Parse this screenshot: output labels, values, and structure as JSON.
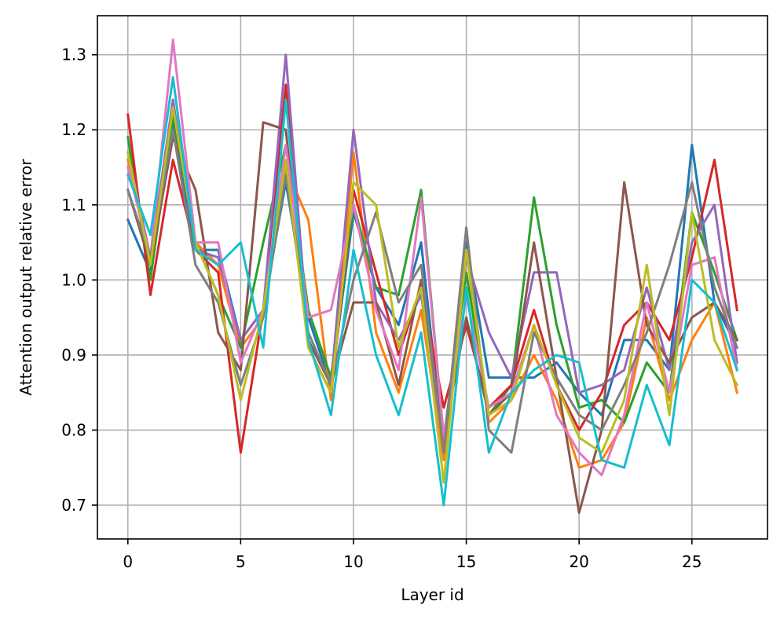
{
  "chart_data": {
    "type": "line",
    "title": "",
    "xlabel": "Layer id",
    "ylabel": "Attention output relative error",
    "xlim": [
      -1.35,
      28.35
    ],
    "ylim": [
      0.655,
      1.352
    ],
    "grid": true,
    "x_ticks": [
      0,
      5,
      10,
      15,
      20,
      25
    ],
    "x_tick_labels": [
      "0",
      "5",
      "10",
      "15",
      "20",
      "25"
    ],
    "y_ticks": [
      0.7,
      0.8,
      0.9,
      1.0,
      1.1,
      1.2,
      1.3
    ],
    "y_tick_labels": [
      "0.7",
      "0.8",
      "0.9",
      "1.0",
      "1.1",
      "1.2",
      "1.3"
    ],
    "x": [
      0,
      1,
      2,
      3,
      4,
      5,
      6,
      7,
      8,
      9,
      10,
      11,
      12,
      13,
      14,
      15,
      16,
      17,
      18,
      19,
      20,
      21,
      22,
      23,
      24,
      25,
      26,
      27
    ],
    "series": [
      {
        "color": "#1f77b4",
        "values": [
          1.08,
          1.01,
          1.21,
          1.04,
          1.04,
          0.92,
          0.96,
          1.13,
          0.95,
          0.86,
          1.09,
          0.99,
          0.94,
          1.05,
          0.77,
          1.05,
          0.87,
          0.87,
          0.87,
          0.89,
          0.85,
          0.82,
          0.92,
          0.92,
          0.88,
          1.18,
          0.97,
          0.91
        ]
      },
      {
        "color": "#ff7f0e",
        "values": [
          1.16,
          1.02,
          1.23,
          1.05,
          1.02,
          0.91,
          0.95,
          1.15,
          1.08,
          0.84,
          1.17,
          0.93,
          0.85,
          0.96,
          0.76,
          1.04,
          0.81,
          0.84,
          0.9,
          0.84,
          0.75,
          0.76,
          0.81,
          0.95,
          0.84,
          0.92,
          0.97,
          0.85
        ]
      },
      {
        "color": "#2ca02c",
        "values": [
          1.19,
          1.0,
          1.22,
          1.05,
          0.98,
          0.91,
          1.05,
          1.18,
          0.96,
          0.87,
          1.1,
          0.99,
          0.98,
          1.12,
          0.79,
          1.01,
          0.82,
          0.86,
          1.11,
          0.94,
          0.83,
          0.84,
          0.81,
          0.89,
          0.85,
          1.09,
          1.01,
          0.92
        ]
      },
      {
        "color": "#d62728",
        "values": [
          1.22,
          0.98,
          1.16,
          1.04,
          1.01,
          0.77,
          0.96,
          1.26,
          0.91,
          0.85,
          1.12,
          1.01,
          0.9,
          0.99,
          0.83,
          0.94,
          0.83,
          0.86,
          0.96,
          0.86,
          0.8,
          0.85,
          0.94,
          0.97,
          0.92,
          1.03,
          1.16,
          0.96
        ]
      },
      {
        "color": "#9467bd",
        "values": [
          1.17,
          1.03,
          1.24,
          1.04,
          1.03,
          0.92,
          0.96,
          1.3,
          0.92,
          0.86,
          1.2,
          0.97,
          0.92,
          0.98,
          0.78,
          1.03,
          0.93,
          0.87,
          1.01,
          1.01,
          0.85,
          0.86,
          0.88,
          0.99,
          0.88,
          1.05,
          1.1,
          0.89
        ]
      },
      {
        "color": "#8c564b",
        "values": [
          1.12,
          1.02,
          1.19,
          1.12,
          0.93,
          0.88,
          1.21,
          1.2,
          0.92,
          0.86,
          0.97,
          0.97,
          0.86,
          1.0,
          0.79,
          0.95,
          0.82,
          0.85,
          1.05,
          0.87,
          0.69,
          0.8,
          1.13,
          0.94,
          0.89,
          0.95,
          0.97,
          0.92
        ]
      },
      {
        "color": "#e377c2",
        "values": [
          1.15,
          1.03,
          1.32,
          1.05,
          1.05,
          0.89,
          0.96,
          1.18,
          0.95,
          0.96,
          1.1,
          0.96,
          0.88,
          1.11,
          0.79,
          0.98,
          0.83,
          0.85,
          0.94,
          0.82,
          0.77,
          0.74,
          0.82,
          0.97,
          0.85,
          1.02,
          1.03,
          0.88
        ]
      },
      {
        "color": "#7f7f7f",
        "values": [
          1.12,
          1.03,
          1.2,
          1.02,
          0.97,
          0.86,
          0.95,
          1.14,
          0.93,
          0.86,
          1.0,
          1.09,
          0.97,
          1.02,
          0.77,
          1.07,
          0.8,
          0.77,
          0.93,
          0.87,
          0.82,
          0.8,
          0.86,
          0.93,
          1.02,
          1.13,
          0.99,
          0.91
        ]
      },
      {
        "color": "#bcbd22",
        "values": [
          1.17,
          1.02,
          1.23,
          1.05,
          0.98,
          0.84,
          0.96,
          1.16,
          0.91,
          0.85,
          1.13,
          1.1,
          0.91,
          0.99,
          0.73,
          1.04,
          0.82,
          0.84,
          0.94,
          0.86,
          0.79,
          0.77,
          0.84,
          1.02,
          0.82,
          1.09,
          0.92,
          0.86
        ]
      },
      {
        "color": "#17becf",
        "values": [
          1.14,
          1.06,
          1.27,
          1.04,
          1.02,
          1.05,
          0.91,
          1.24,
          0.92,
          0.82,
          1.04,
          0.9,
          0.82,
          0.93,
          0.7,
          0.99,
          0.77,
          0.85,
          0.88,
          0.9,
          0.89,
          0.76,
          0.75,
          0.86,
          0.78,
          1.0,
          0.97,
          0.88
        ]
      }
    ]
  }
}
